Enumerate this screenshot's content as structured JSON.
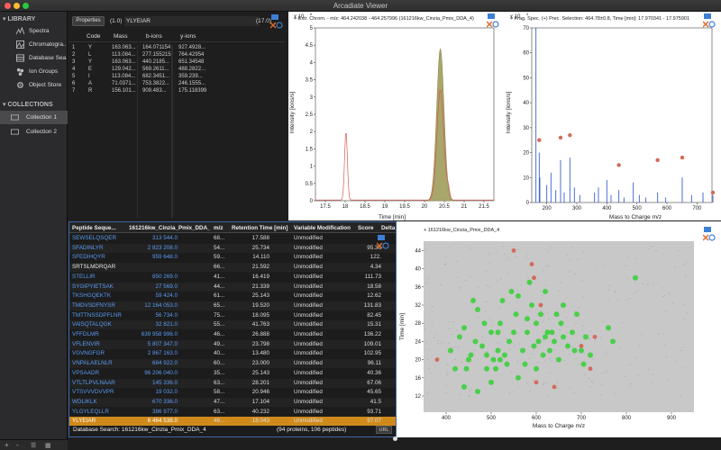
{
  "app": {
    "title": "Arcadiate Viewer"
  },
  "sidebar": {
    "library_label": "LIBRARY",
    "library_items": [
      {
        "label": "Spectra",
        "icon": "spectra-icon"
      },
      {
        "label": "Chromatogra...",
        "icon": "chromatogram-icon"
      },
      {
        "label": "Database Sea...",
        "icon": "database-icon"
      },
      {
        "label": "Ion Groups",
        "icon": "ion-groups-icon"
      },
      {
        "label": "Object Store",
        "icon": "object-store-icon"
      }
    ],
    "collections_label": "COLLECTIONS",
    "collection_items": [
      {
        "label": "Collection 1",
        "selected": true
      },
      {
        "label": "Collection 2",
        "selected": false
      }
    ],
    "bottom": {
      "add": "+",
      "remove": "-"
    }
  },
  "fragment_panel": {
    "properties_button": "Properties",
    "charge": "(1.0)",
    "sequence": "YLYEIAR",
    "mass": "(17.0)",
    "headers": {
      "code": "Code",
      "mass": "Mass",
      "b": "b-ions",
      "y": "y-ions"
    },
    "rows": [
      {
        "n": "1",
        "code": "Y",
        "mass": "163.063...",
        "b": "164.071154",
        "y": "927.4928..."
      },
      {
        "n": "2",
        "code": "L",
        "mass": "113.084...",
        "b": "277.155215",
        "y": "764.42954"
      },
      {
        "n": "3",
        "code": "Y",
        "mass": "163.063...",
        "b": "440.2185...",
        "y": "651.34548"
      },
      {
        "n": "4",
        "code": "E",
        "mass": "129.042...",
        "b": "569.2611...",
        "y": "488.2822..."
      },
      {
        "n": "5",
        "code": "I",
        "mass": "113.084...",
        "b": "682.3451...",
        "y": "359.239..."
      },
      {
        "n": "6",
        "code": "A",
        "mass": "71.0371...",
        "b": "753.3822...",
        "y": "246.1555..."
      },
      {
        "n": "7",
        "code": "R",
        "mass": "156.101...",
        "b": "909.483...",
        "y": "175.118399"
      }
    ]
  },
  "chrom_plot": {
    "title": "+ Extr. Chrom. - m/z: 464.242038 - 464.257996 (161216kw_Cinzia_Pmix_DDA_4)",
    "exponent": "x 10",
    "exp_sup": "6",
    "xlabel": "Time [min]",
    "ylabel": "Intensity [ions/s]",
    "xticks": [
      "17.5",
      "18",
      "18.5",
      "19",
      "19.5",
      "20",
      "20.5",
      "21",
      "21.5"
    ],
    "yticks": [
      "0",
      "0.5",
      "1",
      "1.5",
      "2",
      "2.5",
      "3",
      "3.5",
      "4",
      "4.5",
      "5"
    ]
  },
  "spec_plot": {
    "title": "+ Frag. Spec. (+) Prec. Selection: 464.78±0.8, Time [min]: 17.970341 - 17.975901",
    "exponent": "x 10",
    "exp_sup": "3",
    "xlabel": "Mass to Charge m/z",
    "ylabel": "Intensity [ions/s]",
    "xticks": [
      "200",
      "300",
      "400",
      "500",
      "600",
      "700"
    ],
    "yticks": [
      "0",
      "10",
      "20",
      "30",
      "40",
      "50",
      "60",
      "70"
    ]
  },
  "table": {
    "headers": [
      "Peptide Seque...",
      "161216kw_Cinzia_Pmix_DDA_4",
      "m/z",
      "Retention Time [min]",
      "Variable Modification",
      "Score",
      "Delta"
    ],
    "rows": [
      {
        "pep": "SEWSELQSQER",
        "mz": "313 544.0",
        "rt_code": "68...",
        "rt": "17.588",
        "mod": "Unmodified",
        "score": "",
        "plain": false
      },
      {
        "pep": "SFADINLYR",
        "mz": "2 823 208.0",
        "rt_code": "54...",
        "rt": "25.734",
        "mod": "Unmodified",
        "score": "95.36",
        "plain": false
      },
      {
        "pep": "SFEDIHQYR",
        "mz": "959 648.0",
        "rt_code": "59...",
        "rt": "14.110",
        "mod": "Unmodified",
        "score": "122.",
        "plain": false
      },
      {
        "pep": "SRTSLMDRQAR",
        "mz": "",
        "rt_code": "66...",
        "rt": "21.592",
        "mod": "Unmodified",
        "score": "4.34",
        "plain": true
      },
      {
        "pep": "STELLIR",
        "mz": "850 269.0",
        "rt_code": "41...",
        "rt": "16.419",
        "mod": "Unmodified",
        "score": "111.73",
        "plain": false
      },
      {
        "pep": "SYGIPYIETSAK",
        "mz": "27 569.0",
        "rt_code": "44...",
        "rt": "21.339",
        "mod": "Unmodified",
        "score": "18.58",
        "plain": false
      },
      {
        "pep": "TKSHGQEKTK",
        "mz": "59 424.0",
        "rt_code": "61...",
        "rt": "25.143",
        "mod": "Unmodified",
        "score": "12.62",
        "plain": false
      },
      {
        "pep": "TMDVSDFNYSR",
        "mz": "12 164 053.0",
        "rt_code": "65...",
        "rt": "19.520",
        "mod": "Unmodified",
        "score": "131.83",
        "plain": false
      },
      {
        "pep": "TMTTNSSDPFLNR",
        "mz": "56 734.0",
        "rt_code": "75...",
        "rt": "18.095",
        "mod": "Unmodified",
        "score": "82.45",
        "plain": false
      },
      {
        "pep": "VAISQTALQGK",
        "mz": "32 821.0",
        "rt_code": "55...",
        "rt": "41.763",
        "mod": "Unmodified",
        "score": "15.31",
        "plain": false
      },
      {
        "pep": "VFFDLMR",
        "mz": "639 958 996.0",
        "rt_code": "46...",
        "rt": "26.888",
        "mod": "Unmodified",
        "score": "136.22",
        "plain": false
      },
      {
        "pep": "VFLENVIR",
        "mz": "5 807 347.0",
        "rt_code": "49...",
        "rt": "23.798",
        "mod": "Unmodified",
        "score": "109.01",
        "plain": false
      },
      {
        "pep": "VGVNGFGR",
        "mz": "2 867 163.0",
        "rt_code": "40...",
        "rt": "13.480",
        "mod": "Unmodified",
        "score": "102.95",
        "plain": false
      },
      {
        "pep": "VNPALAELNLR",
        "mz": "684 922.0",
        "rt_code": "60...",
        "rt": "23.000",
        "mod": "Unmodified",
        "score": "96.11",
        "plain": false
      },
      {
        "pep": "VPSAADR",
        "mz": "96 206 040.0",
        "rt_code": "35...",
        "rt": "25.143",
        "mod": "Unmodified",
        "score": "40.36",
        "plain": false
      },
      {
        "pep": "VTLTLPVLNAAR",
        "mz": "145 336.0",
        "rt_code": "63...",
        "rt": "28.201",
        "mod": "Unmodified",
        "score": "67.06",
        "plain": false
      },
      {
        "pep": "VTSVVVDVVPR",
        "mz": "19 032.0",
        "rt_code": "58...",
        "rt": "20.946",
        "mod": "Unmodified",
        "score": "45.65",
        "plain": false
      },
      {
        "pep": "WDLIKLK",
        "mz": "670 336.0",
        "rt_code": "47...",
        "rt": "17.104",
        "mod": "Unmodified",
        "score": "41.5",
        "plain": false
      },
      {
        "pep": "YLGYLEQLLR",
        "mz": "386 977.0",
        "rt_code": "63...",
        "rt": "40.232",
        "mod": "Unmodified",
        "score": "93.71",
        "plain": false
      },
      {
        "pep": "YLYEIAR",
        "mz": "6 464 538.0",
        "rt_code": "46...",
        "rt": "18.043",
        "mod": "Unmodified",
        "score": "97.07",
        "plain": false
      }
    ],
    "footer": {
      "left": "Database Search: 161216kw_Cinzia_Pmix_DDA_4",
      "center": "(94 proteins, 106 peptides)",
      "url": "URL"
    }
  },
  "scatter": {
    "title": "+ 161216kw_Cinzia_Pmix_DDA_4",
    "xlabel": "Mass to Charge m/z",
    "ylabel": "Time [min]",
    "xticks": [
      "400",
      "500",
      "600",
      "700",
      "800",
      "900"
    ],
    "yticks": [
      "12",
      "16",
      "20",
      "24",
      "28",
      "32",
      "36",
      "40",
      "44"
    ]
  },
  "colors": {
    "accent": "#d08a1b",
    "link": "#5b9bf0",
    "green_points": "#3ccf3c",
    "red_points": "#d36a5a"
  }
}
